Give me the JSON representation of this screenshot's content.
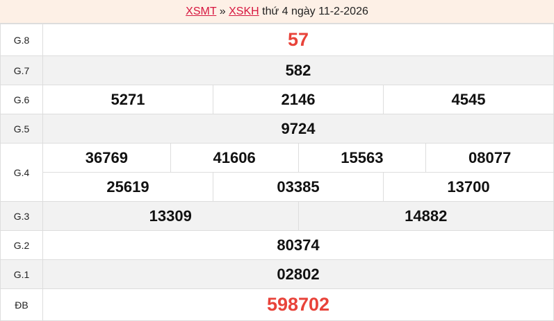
{
  "header": {
    "link1": "XSMT",
    "sep": " » ",
    "link2": "XSKH",
    "text": " thứ 4 ngày 11-2-2026"
  },
  "colors": {
    "accent_red": "#e8433a",
    "link": "#d6163f",
    "header_bg": "#fdf0e6",
    "row_alt": "#f2f2f2"
  },
  "prizes": {
    "g8": {
      "label": "G.8",
      "values": [
        "57"
      ]
    },
    "g7": {
      "label": "G.7",
      "values": [
        "582"
      ]
    },
    "g6": {
      "label": "G.6",
      "values": [
        "5271",
        "2146",
        "4545"
      ]
    },
    "g5": {
      "label": "G.5",
      "values": [
        "9724"
      ]
    },
    "g4": {
      "label": "G.4",
      "values": [
        "36769",
        "41606",
        "15563",
        "08077",
        "25619",
        "03385",
        "13700"
      ]
    },
    "g3": {
      "label": "G.3",
      "values": [
        "13309",
        "14882"
      ]
    },
    "g2": {
      "label": "G.2",
      "values": [
        "80374"
      ]
    },
    "g1": {
      "label": "G.1",
      "values": [
        "02802"
      ]
    },
    "db": {
      "label": "ĐB",
      "values": [
        "598702"
      ]
    }
  }
}
